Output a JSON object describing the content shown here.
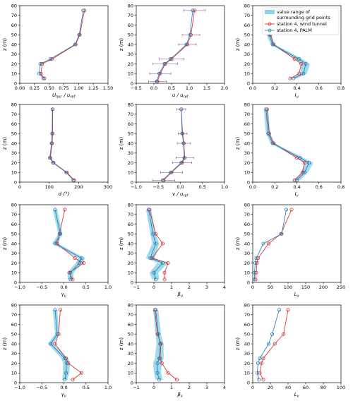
{
  "colors": {
    "tunnel": "#d62728",
    "palm": "#1f77b4",
    "band": "#8fd3e8"
  },
  "legend": {
    "range_label_1": "value range of",
    "range_label_2": "surrounding grid points",
    "tunnel_label": "station 4, wind tunnel",
    "palm_label": "station 4, PALM"
  },
  "chart_data": [
    {
      "type": "line",
      "xlabel": "U_hor / u_ref",
      "ylabel": "z (m)",
      "xlim": [
        0,
        1.5
      ],
      "ylim": [
        0,
        80
      ],
      "xticks": [
        "0.00",
        "0.25",
        "0.50",
        "0.75",
        "1.00",
        "1.25",
        "1.50"
      ],
      "yticks": [
        "0",
        "10",
        "20",
        "30",
        "40",
        "50",
        "60",
        "70",
        "80"
      ],
      "series": [
        {
          "role": "tunnel",
          "x": [
            1.1,
            1.02,
            0.95,
            0.55,
            0.38,
            0.36,
            0.42
          ],
          "y": [
            75,
            50,
            40,
            25,
            20,
            10,
            5
          ]
        },
        {
          "role": "palm",
          "x": [
            1.08,
            1.01,
            0.94,
            0.52,
            0.35,
            0.33,
            0.4
          ],
          "y": [
            75,
            50,
            40,
            25,
            20,
            10,
            5
          ]
        }
      ]
    },
    {
      "type": "line",
      "xlabel": "u / u_ref",
      "ylabel": "z (m)",
      "xlim": [
        -0.5,
        2.0
      ],
      "ylim": [
        0,
        80
      ],
      "xticks": [
        "−0.5",
        "0.0",
        "0.5",
        "1.0",
        "1.5",
        "2.0"
      ],
      "yticks": [
        "0",
        "10",
        "20",
        "30",
        "40",
        "50",
        "60",
        "70",
        "80"
      ],
      "series": [
        {
          "role": "tunnel",
          "x": [
            1.15,
            1.05,
            0.95,
            0.5,
            0.32,
            0.18,
            0.1
          ],
          "y": [
            75,
            50,
            40,
            25,
            20,
            10,
            2
          ],
          "xerr": [
            0.3,
            0.25,
            0.25,
            0.35,
            0.35,
            0.3,
            0.25
          ]
        },
        {
          "role": "palm",
          "x": [
            1.1,
            1.02,
            0.92,
            0.47,
            0.3,
            0.15,
            0.08
          ],
          "y": [
            75,
            50,
            40,
            25,
            20,
            10,
            2
          ]
        }
      ]
    },
    {
      "type": "line",
      "xlabel": "I_u",
      "ylabel": "z (m)",
      "xlim": [
        0,
        0.8
      ],
      "ylim": [
        0,
        80
      ],
      "xticks": [
        "0.0",
        "0.2",
        "0.4",
        "0.6",
        "0.8"
      ],
      "yticks": [
        "0",
        "10",
        "20",
        "30",
        "40",
        "50",
        "60",
        "70",
        "80"
      ],
      "series": [
        {
          "role": "tunnel",
          "x": [
            0.14,
            0.16,
            0.19,
            0.38,
            0.44,
            0.42,
            0.34
          ],
          "y": [
            75,
            50,
            40,
            25,
            20,
            10,
            5
          ]
        },
        {
          "role": "palm",
          "x": [
            0.14,
            0.15,
            0.18,
            0.42,
            0.48,
            0.46,
            0.37
          ],
          "y": [
            75,
            50,
            40,
            25,
            20,
            10,
            5
          ],
          "band": [
            0.02,
            0.02,
            0.02,
            0.03,
            0.04,
            0.03,
            0.03
          ]
        }
      ]
    },
    {
      "type": "line",
      "xlabel": "d (°)",
      "ylabel": "z (m)",
      "xlim": [
        0,
        300
      ],
      "ylim": [
        0,
        80
      ],
      "xticks": [
        "0",
        "100",
        "200",
        "300"
      ],
      "yticks": [
        "0",
        "10",
        "20",
        "30",
        "40",
        "50",
        "60",
        "70",
        "80"
      ],
      "series": [
        {
          "role": "tunnel",
          "x": [
            112,
            112,
            110,
            104,
            115,
            160,
            185
          ],
          "y": [
            75,
            50,
            40,
            25,
            20,
            10,
            2
          ]
        },
        {
          "role": "palm",
          "x": [
            111,
            110,
            108,
            102,
            113,
            158,
            182
          ],
          "y": [
            75,
            50,
            40,
            25,
            20,
            10,
            2
          ]
        }
      ]
    },
    {
      "type": "line",
      "xlabel": "v / u_ref",
      "ylabel": "z (m)",
      "xlim": [
        -1.0,
        1.0
      ],
      "ylim": [
        0,
        80
      ],
      "xticks": [
        "−1.0",
        "−0.5",
        "0.0",
        "0.5",
        "1.0"
      ],
      "yticks": [
        "0",
        "10",
        "20",
        "30",
        "40",
        "50",
        "60",
        "70",
        "80"
      ],
      "series": [
        {
          "role": "tunnel",
          "x": [
            0.02,
            0.05,
            0.08,
            0.1,
            0.04,
            -0.2,
            -0.38
          ],
          "y": [
            75,
            50,
            40,
            25,
            20,
            10,
            2
          ],
          "xerr": [
            0.1,
            0.1,
            0.15,
            0.2,
            0.22,
            0.25,
            0.25
          ]
        },
        {
          "role": "palm",
          "x": [
            0.02,
            0.04,
            0.07,
            0.09,
            0.02,
            -0.22,
            -0.4
          ],
          "y": [
            75,
            50,
            40,
            25,
            20,
            10,
            2
          ]
        }
      ]
    },
    {
      "type": "line",
      "xlabel": "I_v",
      "ylabel": "z (m)",
      "xlim": [
        0,
        0.8
      ],
      "ylim": [
        0,
        80
      ],
      "xticks": [
        "0.0",
        "0.2",
        "0.4",
        "0.6",
        "0.8"
      ],
      "yticks": [
        "0",
        "10",
        "20",
        "30",
        "40",
        "50",
        "60",
        "70",
        "80"
      ],
      "series": [
        {
          "role": "tunnel",
          "x": [
            0.13,
            0.15,
            0.19,
            0.4,
            0.47,
            0.45,
            0.38
          ],
          "y": [
            75,
            50,
            40,
            25,
            20,
            10,
            2
          ]
        },
        {
          "role": "palm",
          "x": [
            0.12,
            0.14,
            0.18,
            0.43,
            0.51,
            0.47,
            0.4
          ],
          "y": [
            75,
            50,
            40,
            25,
            20,
            10,
            2
          ],
          "band": [
            0.02,
            0.02,
            0.02,
            0.03,
            0.04,
            0.03,
            0.03
          ]
        }
      ]
    },
    {
      "type": "line",
      "xlabel": "γ_u",
      "ylabel": "z (m)",
      "xlim": [
        -1.0,
        1.0
      ],
      "ylim": [
        0,
        80
      ],
      "xticks": [
        "−1.0",
        "−0.5",
        "0.0",
        "0.5",
        "1.0"
      ],
      "yticks": [
        "0",
        "10",
        "20",
        "30",
        "40",
        "50",
        "60",
        "70",
        "80"
      ],
      "series": [
        {
          "role": "tunnel",
          "x": [
            0.02,
            -0.1,
            -0.15,
            0.25,
            0.45,
            0.12,
            0.2
          ],
          "y": [
            75,
            50,
            40,
            25,
            20,
            10,
            3
          ]
        },
        {
          "role": "palm",
          "x": [
            -0.2,
            -0.08,
            -0.2,
            0.4,
            0.35,
            0.15,
            0.15
          ],
          "y": [
            75,
            50,
            40,
            25,
            20,
            10,
            3
          ],
          "band": [
            0.05,
            0.05,
            0.06,
            0.08,
            0.08,
            0.07,
            0.06
          ]
        }
      ]
    },
    {
      "type": "line",
      "xlabel": "β_u",
      "ylabel": "z (m)",
      "xlim": [
        -1,
        4
      ],
      "ylim": [
        0,
        80
      ],
      "xticks": [
        "−1",
        "0",
        "1",
        "2",
        "3",
        "4"
      ],
      "yticks": [
        "0",
        "10",
        "20",
        "30",
        "40",
        "50",
        "60",
        "70",
        "80"
      ],
      "series": [
        {
          "role": "tunnel",
          "x": [
            -0.25,
            0.1,
            0.5,
            -0.1,
            0.8,
            0.6,
            0.6
          ],
          "y": [
            75,
            50,
            40,
            25,
            20,
            10,
            3
          ]
        },
        {
          "role": "palm",
          "x": [
            -0.3,
            -0.05,
            0.1,
            -0.2,
            0.5,
            0.0,
            0.1
          ],
          "y": [
            75,
            50,
            40,
            25,
            20,
            10,
            3
          ],
          "band": [
            0.15,
            0.15,
            0.2,
            0.25,
            0.3,
            0.25,
            0.2
          ]
        }
      ]
    },
    {
      "type": "line",
      "xlabel": "L_u",
      "ylabel": "z (m)",
      "xlim": [
        0,
        250
      ],
      "ylim": [
        0,
        80
      ],
      "xticks": [
        "0",
        "50",
        "100",
        "150",
        "200",
        "250"
      ],
      "yticks": [
        "0",
        "10",
        "20",
        "30",
        "40",
        "50",
        "60",
        "70",
        "80"
      ],
      "series": [
        {
          "role": "tunnel",
          "x": [
            110,
            80,
            45,
            15,
            12,
            10,
            8
          ],
          "y": [
            75,
            50,
            40,
            25,
            20,
            10,
            3
          ]
        },
        {
          "role": "palm",
          "x": [
            95,
            82,
            30,
            10,
            7,
            5,
            5
          ],
          "y": [
            75,
            50,
            40,
            25,
            20,
            10,
            3
          ]
        }
      ]
    },
    {
      "type": "line",
      "xlabel": "γ_v",
      "ylabel": "z (m)",
      "xlim": [
        -1.0,
        1.0
      ],
      "ylim": [
        0,
        80
      ],
      "xticks": [
        "−1.0",
        "−0.5",
        "0.0",
        "0.5",
        "1.0"
      ],
      "yticks": [
        "0",
        "10",
        "20",
        "30",
        "40",
        "50",
        "60",
        "70",
        "80"
      ],
      "series": [
        {
          "role": "tunnel",
          "x": [
            -0.08,
            -0.12,
            -0.2,
            0.05,
            0.1,
            0.4,
            0.2
          ],
          "y": [
            75,
            50,
            40,
            25,
            20,
            10,
            3
          ]
        },
        {
          "role": "palm",
          "x": [
            -0.2,
            -0.15,
            -0.3,
            0.02,
            0.06,
            0.05,
            0.02
          ],
          "y": [
            75,
            50,
            40,
            25,
            20,
            10,
            3
          ],
          "band": [
            0.05,
            0.05,
            0.06,
            0.08,
            0.08,
            0.07,
            0.06
          ]
        }
      ]
    },
    {
      "type": "line",
      "xlabel": "β_v",
      "ylabel": "z (m)",
      "xlim": [
        -1,
        4
      ],
      "ylim": [
        0,
        80
      ],
      "xticks": [
        "−1",
        "0",
        "1",
        "2",
        "3",
        "4"
      ],
      "yticks": [
        "0",
        "10",
        "20",
        "30",
        "40",
        "50",
        "60",
        "70",
        "80"
      ],
      "series": [
        {
          "role": "tunnel",
          "x": [
            0.05,
            0.2,
            0.4,
            0.35,
            0.45,
            0.8,
            1.3
          ],
          "y": [
            75,
            50,
            40,
            25,
            20,
            10,
            3
          ]
        },
        {
          "role": "palm",
          "x": [
            0.1,
            0.25,
            0.35,
            0.3,
            0.2,
            0.2,
            0.3
          ],
          "y": [
            75,
            50,
            40,
            25,
            20,
            10,
            3
          ],
          "band": [
            0.15,
            0.15,
            0.2,
            0.25,
            0.25,
            0.2,
            0.2
          ]
        }
      ]
    },
    {
      "type": "line",
      "xlabel": "L_v",
      "ylabel": "z (m)",
      "xlim": [
        0,
        100
      ],
      "ylim": [
        0,
        80
      ],
      "xticks": [
        "0",
        "20",
        "40",
        "60",
        "80",
        "100"
      ],
      "yticks": [
        "0",
        "10",
        "20",
        "30",
        "40",
        "50",
        "60",
        "70",
        "80"
      ],
      "series": [
        {
          "role": "tunnel",
          "x": [
            40,
            35,
            25,
            12,
            10,
            8,
            12
          ],
          "y": [
            75,
            50,
            40,
            25,
            20,
            10,
            3
          ]
        },
        {
          "role": "palm",
          "x": [
            30,
            22,
            18,
            8,
            6,
            5,
            7
          ],
          "y": [
            75,
            50,
            40,
            25,
            20,
            10,
            3
          ]
        }
      ]
    }
  ]
}
